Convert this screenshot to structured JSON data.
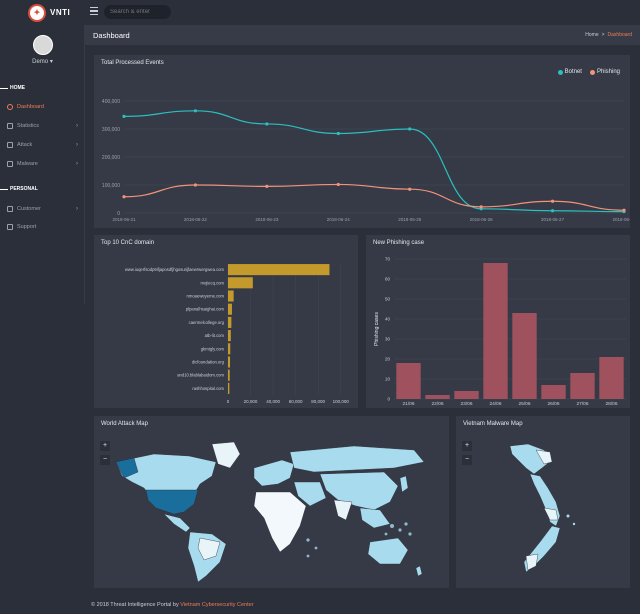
{
  "brand": {
    "name": "VNTI",
    "logo_icon": "shield-logo-icon"
  },
  "search": {
    "placeholder": "Search & enter"
  },
  "user": {
    "name": "Demo",
    "caret": "▾"
  },
  "sidebar": {
    "sections": [
      {
        "label": "HOME"
      },
      {
        "label": "PERSONAL"
      }
    ],
    "items": [
      {
        "label": "Dashboard",
        "icon": "dashboard-icon",
        "chevron": ""
      },
      {
        "label": "Statistics",
        "icon": "statistics-icon",
        "chevron": "›"
      },
      {
        "label": "Attack",
        "icon": "attack-icon",
        "chevron": "›"
      },
      {
        "label": "Malware",
        "icon": "malware-icon",
        "chevron": "›"
      },
      {
        "label": "Customer",
        "icon": "customer-icon",
        "chevron": "›"
      },
      {
        "label": "Support",
        "icon": "support-icon",
        "chevron": ""
      }
    ]
  },
  "page": {
    "title": "Dashboard"
  },
  "breadcrumb": {
    "home": "Home",
    "sep": ">",
    "current": "Dashboard"
  },
  "panels": {
    "events": "Total Processed Events",
    "cnc": "Top 10 CnC domain",
    "phishing": "New Phishing case",
    "world_map": "World Attack Map",
    "vn_map": "Vietnam Malware Map"
  },
  "map_controls": {
    "zoom_in": "+",
    "zoom_out": "−"
  },
  "colors": {
    "botnet": "#2bbfbf",
    "phishing": "#f2937a",
    "cnc_bar": "#c49a2c",
    "phishing_bar": "#a0515e",
    "accent": "#f07c55",
    "map_land": "#a8dbee",
    "map_highlight": "#1a6e9c"
  },
  "chart_data": [
    {
      "type": "line",
      "title": "Total Processed Events",
      "x": [
        "2018-06-21",
        "2018-06-22",
        "2018-06-23",
        "2018-06-24",
        "2018-06-25",
        "2018-06-26",
        "2018-06-27",
        "2018-06-28"
      ],
      "series": [
        {
          "name": "Botnet",
          "values": [
            345000,
            365000,
            318000,
            284000,
            300000,
            15000,
            8000,
            5000
          ]
        },
        {
          "name": "Phishing",
          "values": [
            58000,
            100000,
            95000,
            102000,
            85000,
            22000,
            42000,
            10000
          ]
        }
      ],
      "yticks": [
        "0",
        "100,000",
        "200,000",
        "300,000",
        "400,000"
      ],
      "ylim": [
        0,
        400000
      ],
      "legend": "top-right",
      "grid": true
    },
    {
      "type": "bar",
      "orientation": "horizontal",
      "title": "Top 10 CnC domain",
      "categories": [
        "www.iuqerfsodp9ifjaposdfjhgosurijfaewrwergwea.com",
        "mojiecq.com",
        "nmoaeweyeme.com",
        "plpanalhsaighai.com",
        "caermelcollege.org",
        "atb-lit.com",
        "gkmtgly.com",
        "dicfoundation.org",
        "and10.blablabaidom.com",
        "rashhospital.com"
      ],
      "values": [
        90000,
        22000,
        5000,
        3500,
        3000,
        2500,
        2000,
        1800,
        1500,
        1200
      ],
      "xticks": [
        "0",
        "20,000",
        "40,000",
        "60,000",
        "80,000",
        "100,000"
      ],
      "xlim": [
        0,
        110000
      ]
    },
    {
      "type": "bar",
      "title": "New Phishing case",
      "categories": [
        "21/06",
        "22/06",
        "23/06",
        "24/06",
        "25/06",
        "26/06",
        "27/06",
        "28/06"
      ],
      "values": [
        18,
        2,
        4,
        68,
        43,
        7,
        13,
        21
      ],
      "ylabel": "Phishing cases",
      "yticks": [
        "0",
        "10",
        "20",
        "30",
        "40",
        "50",
        "60",
        "70"
      ],
      "ylim": [
        0,
        70
      ]
    }
  ],
  "footer": {
    "text": "© 2018 Threat Intelligence Portal by ",
    "link": "Vietnam Cybersecurity Center"
  }
}
